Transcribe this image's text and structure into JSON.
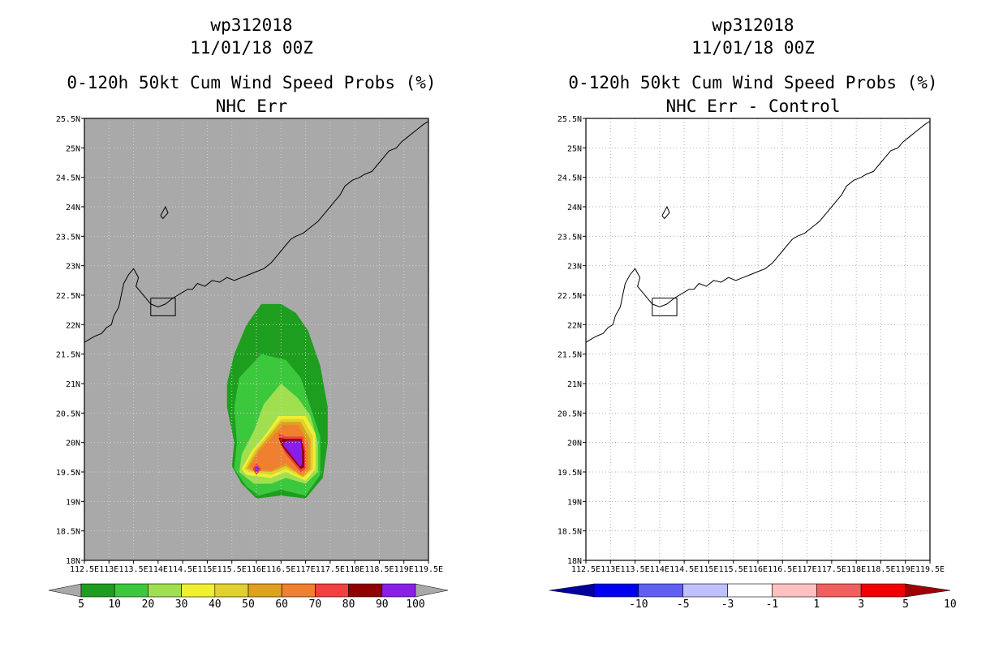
{
  "chart_data": [
    {
      "type": "contour-map",
      "title_lines": [
        "wp312018",
        "11/01/18 00Z",
        "0-120h 50kt Cum Wind Speed Probs (%)",
        "NHC Err"
      ],
      "xlim": [
        112.5,
        119.5
      ],
      "ylim": [
        18,
        25.5
      ],
      "x_ticks": [
        "112.5E",
        "113E",
        "113.5E",
        "114E",
        "114.5E",
        "115E",
        "115.5E",
        "116E",
        "116.5E",
        "117E",
        "117.5E",
        "118E",
        "118.5E",
        "119E",
        "119.5E"
      ],
      "y_ticks": [
        "18N",
        "18.5N",
        "19N",
        "19.5N",
        "20N",
        "20.5N",
        "21N",
        "21.5N",
        "22N",
        "22.5N",
        "23N",
        "23.5N",
        "24N",
        "24.5N",
        "25N",
        "25.5N"
      ],
      "background_color": "#a9a9a9",
      "colorbar": {
        "labels": [
          "5",
          "10",
          "20",
          "30",
          "40",
          "50",
          "60",
          "70",
          "80",
          "90",
          "100"
        ],
        "colors": [
          "#1e9e1e",
          "#3cc83c",
          "#a0e050",
          "#f0f030",
          "#e0d030",
          "#e0a020",
          "#f08030",
          "#f04040",
          "#900000",
          "#8a1ee6"
        ]
      },
      "contours": [
        {
          "level": 5,
          "color": "#1e9e1e",
          "points": [
            [
              116.5,
              22.35
            ],
            [
              116.1,
              22.35
            ],
            [
              115.8,
              22.0
            ],
            [
              115.55,
              21.5
            ],
            [
              115.4,
              21.0
            ],
            [
              115.4,
              20.6
            ],
            [
              115.55,
              20.0
            ],
            [
              115.5,
              19.6
            ],
            [
              115.7,
              19.3
            ],
            [
              116.0,
              19.05
            ],
            [
              116.5,
              19.1
            ],
            [
              117.0,
              19.05
            ],
            [
              117.35,
              19.4
            ],
            [
              117.45,
              20.0
            ],
            [
              117.45,
              20.6
            ],
            [
              117.3,
              21.3
            ],
            [
              117.05,
              21.9
            ],
            [
              116.8,
              22.2
            ]
          ]
        },
        {
          "level": 10,
          "color": "#3cc83c",
          "points": [
            [
              116.1,
              21.5
            ],
            [
              115.65,
              21.1
            ],
            [
              115.55,
              20.6
            ],
            [
              115.6,
              20.0
            ],
            [
              115.55,
              19.55
            ],
            [
              115.8,
              19.25
            ],
            [
              116.05,
              19.1
            ],
            [
              116.5,
              19.2
            ],
            [
              117.0,
              19.1
            ],
            [
              117.3,
              19.45
            ],
            [
              117.3,
              20.1
            ],
            [
              117.1,
              20.6
            ],
            [
              116.9,
              21.1
            ],
            [
              116.6,
              21.4
            ]
          ]
        },
        {
          "level": 20,
          "color": "#a0e050",
          "points": [
            [
              116.5,
              21.0
            ],
            [
              116.15,
              20.65
            ],
            [
              115.95,
              20.2
            ],
            [
              115.7,
              19.8
            ],
            [
              115.65,
              19.5
            ],
            [
              115.95,
              19.3
            ],
            [
              116.3,
              19.3
            ],
            [
              116.6,
              19.4
            ],
            [
              117.0,
              19.3
            ],
            [
              117.25,
              19.5
            ],
            [
              117.25,
              20.0
            ],
            [
              117.1,
              20.45
            ],
            [
              116.85,
              20.75
            ]
          ]
        },
        {
          "level": 30,
          "color": "#f0f030",
          "points": [
            [
              116.45,
              20.45
            ],
            [
              117.0,
              20.45
            ],
            [
              117.2,
              20.15
            ],
            [
              117.2,
              19.55
            ],
            [
              117.0,
              19.35
            ],
            [
              116.6,
              19.5
            ],
            [
              116.3,
              19.4
            ],
            [
              115.8,
              19.45
            ],
            [
              115.7,
              19.55
            ],
            [
              115.9,
              19.85
            ],
            [
              116.2,
              20.15
            ]
          ]
        },
        {
          "level": 40,
          "color": "#e0d030",
          "points": [
            [
              116.5,
              20.4
            ],
            [
              116.95,
              20.4
            ],
            [
              117.15,
              20.1
            ],
            [
              117.15,
              19.55
            ],
            [
              116.95,
              19.4
            ],
            [
              116.6,
              19.55
            ],
            [
              116.3,
              19.45
            ],
            [
              115.85,
              19.5
            ],
            [
              115.75,
              19.55
            ],
            [
              115.95,
              19.85
            ],
            [
              116.25,
              20.15
            ]
          ]
        },
        {
          "level": 50,
          "color": "#e0a020",
          "points": [
            [
              116.5,
              20.35
            ],
            [
              116.9,
              20.35
            ],
            [
              117.1,
              20.05
            ],
            [
              117.1,
              19.55
            ],
            [
              116.95,
              19.42
            ],
            [
              116.6,
              19.6
            ],
            [
              116.3,
              19.5
            ],
            [
              115.9,
              19.52
            ],
            [
              115.8,
              19.56
            ],
            [
              116.0,
              19.85
            ],
            [
              116.3,
              20.15
            ]
          ]
        },
        {
          "level": 60,
          "color": "#f08030",
          "points": [
            [
              116.55,
              20.3
            ],
            [
              116.85,
              20.3
            ],
            [
              117.05,
              20.0
            ],
            [
              117.05,
              19.55
            ],
            [
              116.9,
              19.45
            ],
            [
              116.6,
              19.65
            ],
            [
              116.3,
              19.52
            ],
            [
              115.95,
              19.55
            ],
            [
              115.85,
              19.58
            ],
            [
              116.05,
              19.85
            ],
            [
              116.35,
              20.12
            ]
          ]
        },
        {
          "level": 70,
          "color": "#f04040",
          "points": [
            [
              116.45,
              20.15
            ],
            [
              116.6,
              20.1
            ],
            [
              116.95,
              20.1
            ],
            [
              117.0,
              19.85
            ],
            [
              117.0,
              19.55
            ],
            [
              116.9,
              19.5
            ],
            [
              116.6,
              19.8
            ],
            [
              116.5,
              19.95
            ]
          ]
        },
        {
          "level": 80,
          "color": "#900000",
          "points": [
            [
              116.45,
              20.08
            ],
            [
              116.6,
              20.06
            ],
            [
              116.92,
              20.06
            ],
            [
              116.97,
              19.85
            ],
            [
              116.97,
              19.58
            ],
            [
              116.9,
              19.55
            ],
            [
              116.6,
              19.85
            ],
            [
              116.5,
              19.97
            ]
          ]
        },
        {
          "level": 90,
          "color": "#8a1ee6",
          "points": [
            [
              116.55,
              20.0
            ],
            [
              116.62,
              20.03
            ],
            [
              116.9,
              20.03
            ],
            [
              116.93,
              19.85
            ],
            [
              116.93,
              19.62
            ],
            [
              116.88,
              19.6
            ],
            [
              116.62,
              19.88
            ],
            [
              116.55,
              19.95
            ]
          ]
        },
        {
          "level": 70,
          "color": "#f04040",
          "points": [
            [
              115.92,
              19.55
            ],
            [
              116.0,
              19.65
            ],
            [
              116.1,
              19.55
            ],
            [
              116.0,
              19.45
            ]
          ]
        },
        {
          "level": 90,
          "color": "#8a1ee6",
          "points": [
            [
              115.96,
              19.55
            ],
            [
              116.0,
              19.61
            ],
            [
              116.06,
              19.55
            ],
            [
              116.0,
              19.49
            ]
          ]
        }
      ]
    },
    {
      "type": "contour-map",
      "title_lines": [
        "wp312018",
        "11/01/18 00Z",
        "0-120h 50kt Cum Wind Speed Probs (%)",
        "NHC Err - Control"
      ],
      "xlim": [
        112.5,
        119.5
      ],
      "ylim": [
        18,
        25.5
      ],
      "x_ticks": [
        "112.5E",
        "113E",
        "113.5E",
        "114E",
        "114.5E",
        "115E",
        "115.5E",
        "116E",
        "116.5E",
        "117E",
        "117.5E",
        "118E",
        "118.5E",
        "119E",
        "119.5E"
      ],
      "y_ticks": [
        "18N",
        "18.5N",
        "19N",
        "19.5N",
        "20N",
        "20.5N",
        "21N",
        "21.5N",
        "22N",
        "22.5N",
        "23N",
        "23.5N",
        "24N",
        "24.5N",
        "25N",
        "25.5N"
      ],
      "background_color": "#ffffff",
      "colorbar": {
        "labels": [
          "-10",
          "-5",
          "-3",
          "-1",
          "1",
          "3",
          "5",
          "10"
        ],
        "colors": [
          "#0000a0",
          "#0000f0",
          "#6060f0",
          "#c0c0ff",
          "#ffffff",
          "#ffc0c0",
          "#f06060",
          "#f00000",
          "#a00000"
        ]
      },
      "contours": []
    }
  ],
  "coastline": [
    [
      [
        112.5,
        21.7
      ],
      [
        112.7,
        21.8
      ],
      [
        112.85,
        21.85
      ],
      [
        112.95,
        21.95
      ],
      [
        113.05,
        22.0
      ],
      [
        113.1,
        22.15
      ],
      [
        113.2,
        22.3
      ],
      [
        113.25,
        22.5
      ],
      [
        113.3,
        22.7
      ],
      [
        113.4,
        22.85
      ],
      [
        113.5,
        22.95
      ],
      [
        113.6,
        22.8
      ],
      [
        113.55,
        22.65
      ],
      [
        113.65,
        22.55
      ],
      [
        113.75,
        22.45
      ],
      [
        113.85,
        22.35
      ],
      [
        114.0,
        22.3
      ],
      [
        114.15,
        22.35
      ],
      [
        114.3,
        22.45
      ],
      [
        114.4,
        22.5
      ],
      [
        114.5,
        22.55
      ],
      [
        114.6,
        22.6
      ],
      [
        114.7,
        22.6
      ],
      [
        114.8,
        22.7
      ],
      [
        114.95,
        22.65
      ],
      [
        115.1,
        22.75
      ],
      [
        115.25,
        22.72
      ],
      [
        115.4,
        22.8
      ],
      [
        115.55,
        22.75
      ],
      [
        115.7,
        22.8
      ],
      [
        115.85,
        22.85
      ],
      [
        116.0,
        22.9
      ],
      [
        116.15,
        22.95
      ],
      [
        116.3,
        23.05
      ],
      [
        116.4,
        23.15
      ],
      [
        116.5,
        23.25
      ],
      [
        116.6,
        23.35
      ],
      [
        116.7,
        23.45
      ],
      [
        116.8,
        23.5
      ],
      [
        116.95,
        23.55
      ],
      [
        117.1,
        23.65
      ],
      [
        117.25,
        23.75
      ],
      [
        117.4,
        23.9
      ],
      [
        117.5,
        24.0
      ],
      [
        117.6,
        24.1
      ],
      [
        117.7,
        24.2
      ],
      [
        117.8,
        24.35
      ],
      [
        117.95,
        24.45
      ],
      [
        118.1,
        24.5
      ],
      [
        118.2,
        24.55
      ],
      [
        118.35,
        24.6
      ],
      [
        118.5,
        24.75
      ],
      [
        118.6,
        24.85
      ],
      [
        118.7,
        24.95
      ],
      [
        118.85,
        25.0
      ],
      [
        118.95,
        25.1
      ],
      [
        119.1,
        25.2
      ],
      [
        119.25,
        25.3
      ],
      [
        119.4,
        25.4
      ],
      [
        119.5,
        25.45
      ]
    ],
    [
      [
        114.05,
        23.85
      ],
      [
        114.15,
        24.0
      ],
      [
        114.2,
        23.9
      ],
      [
        114.1,
        23.8
      ],
      [
        114.05,
        23.85
      ]
    ],
    [
      [
        113.85,
        22.45
      ],
      [
        114.35,
        22.45
      ],
      [
        114.35,
        22.15
      ],
      [
        113.85,
        22.15
      ],
      [
        113.85,
        22.45
      ]
    ]
  ]
}
